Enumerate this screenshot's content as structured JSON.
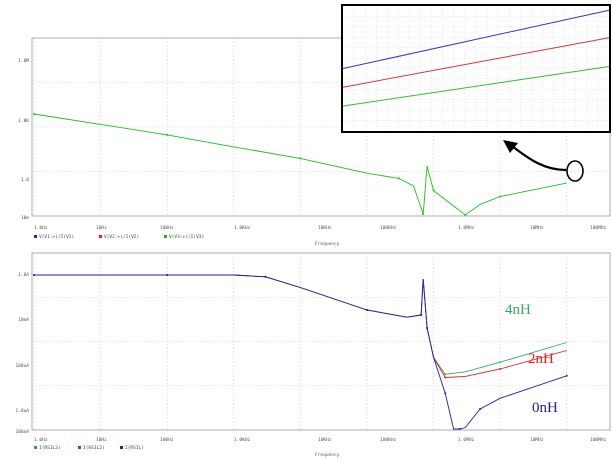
{
  "chart_data": [
    {
      "type": "line",
      "xscale": "log",
      "yscale": "log",
      "xlim": [
        1,
        10000000000
      ],
      "ylim": [
        0.001,
        10000
      ],
      "x_ticks": [
        "1.0Hz",
        "10Hz",
        "100Hz",
        "1.0KHz",
        "10KHz",
        "100KHz",
        "1.0MHz",
        "10MHz",
        "100MHz"
      ],
      "y_ticks": [
        "10m",
        "1.0",
        "1.0K",
        "1.0M"
      ],
      "xlabel": "Frequency",
      "legend": [
        "V(V1:+)/I(V1)",
        "V(V2:+)/I(V2)",
        "V(V3:+)/I(V3)"
      ],
      "series": [
        {
          "name": "V(V3:+)/I(V3)",
          "color": "#22bb22",
          "x": [
            1,
            10,
            100,
            1000,
            10000,
            100000,
            300000,
            500000,
            700000,
            800000,
            1000000,
            2000000,
            3000000,
            5000000,
            10000000,
            100000000,
            1000000000
          ],
          "y": [
            2000,
            600,
            180,
            45,
            12,
            2.2,
            1.2,
            0.5,
            0.02,
            5,
            0.3,
            0.05,
            0.015,
            0.06,
            0.15,
            0.7,
            3
          ]
        }
      ]
    },
    {
      "type": "line",
      "xscale": "log",
      "yscale": "log",
      "xlim": [
        1,
        10000000000
      ],
      "ylim": [
        1e-10,
        1
      ],
      "x_ticks": [
        "1.0Hz",
        "10Hz",
        "100Hz",
        "1.0KHz",
        "10KHz",
        "100KHz",
        "1.0MHz",
        "10MHz",
        "100MHz"
      ],
      "y_ticks": [
        "100nA",
        "1.0uA",
        "100uA",
        "10mA",
        "1.0A"
      ],
      "xlabel": "Frequency",
      "legend": [
        "I(RSIL3)",
        "I(RSIL2)",
        "I(RSIL)"
      ],
      "series": [
        {
          "name": "4nH",
          "color": "#33aa66",
          "x": [
            1,
            10,
            100,
            1000,
            3000,
            10000,
            100000,
            400000,
            650000,
            700000,
            800000,
            1000000,
            1500000,
            3000000,
            10000000,
            100000000,
            1000000000
          ],
          "y": [
            0.9,
            0.9,
            0.9,
            0.9,
            0.75,
            0.25,
            0.025,
            0.012,
            0.015,
            0.6,
            0.004,
            0.0002,
            3.5e-05,
            4.5e-05,
            0.00012,
            0.0009,
            0.008
          ]
        },
        {
          "name": "2nH",
          "color": "#dd2222",
          "x": [
            1,
            10,
            100,
            1000,
            3000,
            10000,
            100000,
            400000,
            650000,
            700000,
            800000,
            1000000,
            1500000,
            3000000,
            10000000,
            100000000,
            1000000000
          ],
          "y": [
            0.9,
            0.9,
            0.9,
            0.9,
            0.75,
            0.25,
            0.025,
            0.012,
            0.015,
            0.6,
            0.004,
            0.0002,
            2.5e-05,
            2.8e-05,
            6e-05,
            0.0004,
            0.004
          ]
        },
        {
          "name": "0nH",
          "color": "#2222aa",
          "x": [
            1,
            10,
            100,
            1000,
            3000,
            10000,
            100000,
            400000,
            650000,
            700000,
            800000,
            1000000,
            1500000,
            2000000,
            2500000,
            3000000,
            5000000,
            10000000,
            100000000,
            1000000000
          ],
          "y": [
            0.9,
            0.9,
            0.9,
            0.9,
            0.75,
            0.25,
            0.025,
            0.012,
            0.015,
            0.6,
            0.004,
            0.0002,
            5e-06,
            1.2e-07,
            1e-08,
            1.5e-07,
            1e-06,
            3e-06,
            3e-05,
            0.0003
          ]
        }
      ]
    },
    {
      "type": "line",
      "role": "zoomed inset of upper plot",
      "series": [
        {
          "name": "blue",
          "color": "#3333cc",
          "y_start": 0.3,
          "y_end": 0.95
        },
        {
          "name": "red",
          "color": "#dd3333",
          "y_start": 0.15,
          "y_end": 0.73
        },
        {
          "name": "green",
          "color": "#33bb33",
          "y_start": 0.0,
          "y_end": 0.5
        }
      ]
    }
  ],
  "labels": {
    "top_y_ticks": [
      "1.0M",
      "1.0K",
      "1.0",
      "10m"
    ],
    "bottom_y_ticks": [
      "1.0A",
      "10mA",
      "100uA",
      "1.0uA",
      "100nA"
    ],
    "x_ticks": [
      "1.0Hz",
      "10Hz",
      "100Hz",
      "1.0KHz",
      "10KHz",
      "100KHz",
      "1.0MHz",
      "10MHz",
      "100MHz"
    ],
    "xlabel": "Frequency",
    "top_legend": [
      "V(V1:+)/I(V1)",
      "V(V2:+)/I(V2)",
      "V(V3:+)/I(V3)"
    ],
    "bottom_legend": [
      "I(RSIL3)",
      "I(RSIL2)",
      "I(RSIL)"
    ],
    "ann_4nH": "4nH",
    "ann_2nH": "2nH",
    "ann_0nH": "0nH"
  },
  "colors": {
    "green": "#22aa22",
    "ann_4nH": "#33aa66",
    "ann_2nH": "#dd2222",
    "ann_0nH": "#222288"
  }
}
